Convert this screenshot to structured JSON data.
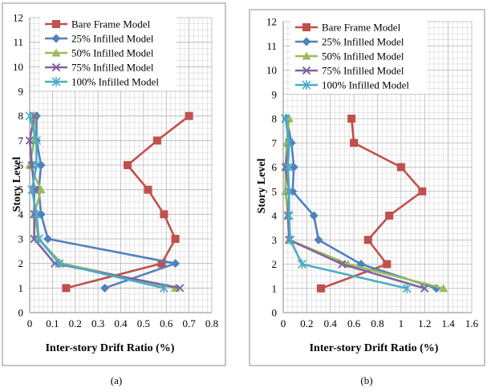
{
  "figure": {
    "caption_a": "(a)",
    "caption_b": "(b)"
  },
  "chart_data": [
    {
      "type": "line",
      "panel": "(a)",
      "xlabel": "Inter-story Drift Ratio (%)",
      "ylabel": "Story Level",
      "xlim": [
        0,
        0.8
      ],
      "ylim": [
        0,
        12
      ],
      "xticks": [
        "0",
        "0.1",
        "0.2",
        "0.3",
        "0.4",
        "0.5",
        "0.6",
        "0.7",
        "0.8"
      ],
      "yticks": [
        "0",
        "1",
        "2",
        "3",
        "4",
        "5",
        "6",
        "7",
        "8",
        "9",
        "10",
        "11",
        "12"
      ],
      "grid": true,
      "legend_position": "top",
      "series": [
        {
          "name": "Bare Frame Model",
          "color": "#c0504d",
          "marker": "square",
          "x": [
            0.16,
            0.58,
            0.64,
            0.59,
            0.52,
            0.43,
            0.56,
            0.7
          ],
          "y": [
            1,
            2,
            3,
            4,
            5,
            6,
            7,
            8
          ]
        },
        {
          "name": "25% Infilled Model",
          "color": "#4f81bd",
          "marker": "diamond",
          "x": [
            0.33,
            0.64,
            0.08,
            0.05,
            0.04,
            0.05,
            0.03,
            0.03
          ],
          "y": [
            1,
            2,
            3,
            4,
            5,
            6,
            7,
            8
          ]
        },
        {
          "name": "50% Infilled Model",
          "color": "#9bbb59",
          "marker": "triangle",
          "x": [
            0.64,
            0.14,
            0.04,
            0.02,
            0.05,
            0.0,
            0.02,
            0.02
          ],
          "y": [
            1,
            2,
            3,
            4,
            5,
            6,
            7,
            8
          ]
        },
        {
          "name": "75% Infilled Model",
          "color": "#8064a2",
          "marker": "x",
          "x": [
            0.66,
            0.11,
            0.02,
            0.02,
            0.02,
            0.01,
            0.0,
            0.02
          ],
          "y": [
            1,
            2,
            3,
            4,
            5,
            6,
            7,
            8
          ]
        },
        {
          "name": "100% Infilled Model",
          "color": "#4bacc6",
          "marker": "star",
          "x": [
            0.59,
            0.13,
            0.04,
            0.03,
            0.01,
            0.03,
            0.03,
            0.0
          ],
          "y": [
            1,
            2,
            3,
            4,
            5,
            6,
            7,
            8
          ]
        }
      ]
    },
    {
      "type": "line",
      "panel": "(b)",
      "xlabel": "Inter-story Drift Ratio (%)",
      "ylabel": "Story Level",
      "xlim": [
        0,
        1.6
      ],
      "ylim": [
        0,
        12
      ],
      "xticks": [
        "0",
        "0.2",
        "0.4",
        "0.6",
        "0.8",
        "1",
        "1.2",
        "1.4",
        "1.6"
      ],
      "yticks": [
        "0",
        "1",
        "2",
        "3",
        "4",
        "5",
        "6",
        "7",
        "8",
        "9",
        "10",
        "11",
        "12"
      ],
      "grid": true,
      "legend_position": "top",
      "series": [
        {
          "name": "Bare Frame Model",
          "color": "#c0504d",
          "marker": "square",
          "x": [
            0.32,
            0.88,
            0.72,
            0.9,
            1.18,
            1.0,
            0.6,
            0.58
          ],
          "y": [
            1,
            2,
            3,
            4,
            5,
            6,
            7,
            8
          ]
        },
        {
          "name": "25% Infilled Model",
          "color": "#4f81bd",
          "marker": "diamond",
          "x": [
            1.3,
            0.66,
            0.3,
            0.26,
            0.08,
            0.09,
            0.07,
            0.03
          ],
          "y": [
            1,
            2,
            3,
            4,
            5,
            6,
            7,
            8
          ]
        },
        {
          "name": "50% Infilled Model",
          "color": "#9bbb59",
          "marker": "triangle",
          "x": [
            1.36,
            0.55,
            0.05,
            0.04,
            0.02,
            0.02,
            0.03,
            0.05
          ],
          "y": [
            1,
            2,
            3,
            4,
            5,
            6,
            7,
            8
          ]
        },
        {
          "name": "75% Infilled Model",
          "color": "#8064a2",
          "marker": "x",
          "x": [
            1.2,
            0.5,
            0.05,
            0.04,
            0.05,
            0.02,
            0.05,
            0.02
          ],
          "y": [
            1,
            2,
            3,
            4,
            5,
            6,
            7,
            8
          ]
        },
        {
          "name": "100% Infilled Model",
          "color": "#4bacc6",
          "marker": "star",
          "x": [
            1.05,
            0.16,
            0.06,
            0.05,
            0.05,
            0.04,
            0.05,
            0.02
          ],
          "y": [
            1,
            2,
            3,
            4,
            5,
            6,
            7,
            8
          ]
        }
      ]
    }
  ]
}
